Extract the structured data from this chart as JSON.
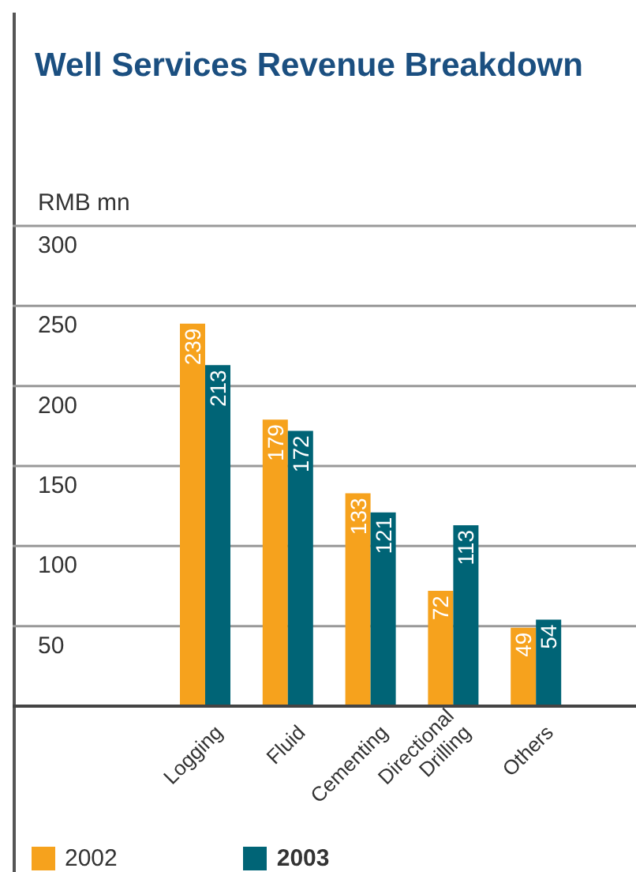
{
  "chart_data": {
    "type": "bar",
    "title": "Well Services Revenue Breakdown",
    "ylabel": "RMB mn",
    "categories": [
      "Logging",
      "Fluid",
      "Cementing",
      "Directional Drilling",
      "Others"
    ],
    "series": [
      {
        "name": "2002",
        "color": "#f6a21d",
        "values": [
          239,
          179,
          133,
          72,
          49
        ]
      },
      {
        "name": "2003",
        "color": "#006476",
        "values": [
          213,
          172,
          121,
          113,
          54
        ]
      }
    ],
    "ylim": [
      0,
      300
    ],
    "yticks": [
      {
        "value": 0,
        "label": null
      },
      50,
      100,
      150,
      200,
      250,
      300
    ],
    "grid": "y",
    "legend": "bottom left",
    "data_labels": true
  }
}
